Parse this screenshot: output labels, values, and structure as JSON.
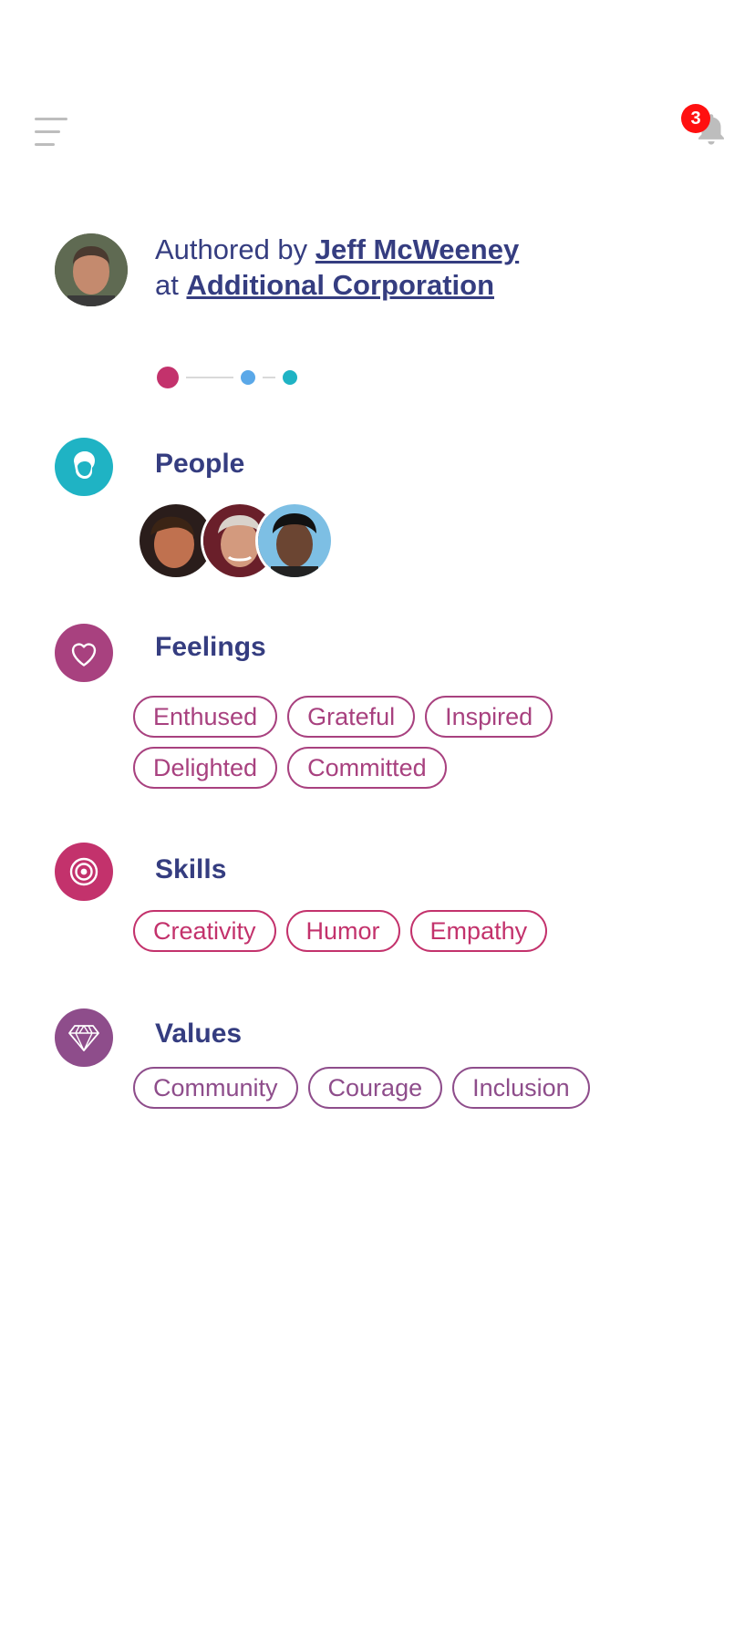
{
  "header": {
    "notification_count": "3"
  },
  "author": {
    "prefix": "Authored by",
    "name": "Jeff McWeeney",
    "at": "at",
    "company": "Additional Corporation"
  },
  "progress": {
    "steps": 3,
    "colors": [
      "#c3326c",
      "#5aa8e8",
      "#1fb3c4"
    ]
  },
  "sections": {
    "people": {
      "title": "People",
      "icon": "person-head-icon",
      "color": "#1fb3c4"
    },
    "feelings": {
      "title": "Feelings",
      "icon": "heart-icon",
      "color": "#a8417f",
      "tags": [
        "Enthused",
        "Grateful",
        "Inspired",
        "Delighted",
        "Committed"
      ]
    },
    "skills": {
      "title": "Skills",
      "icon": "target-icon",
      "color": "#c3326c",
      "tags": [
        "Creativity",
        "Humor",
        "Empathy"
      ]
    },
    "values": {
      "title": "Values",
      "icon": "diamond-icon",
      "color": "#8e4d8b",
      "tags": [
        "Community",
        "Courage",
        "Inclusion"
      ]
    }
  }
}
